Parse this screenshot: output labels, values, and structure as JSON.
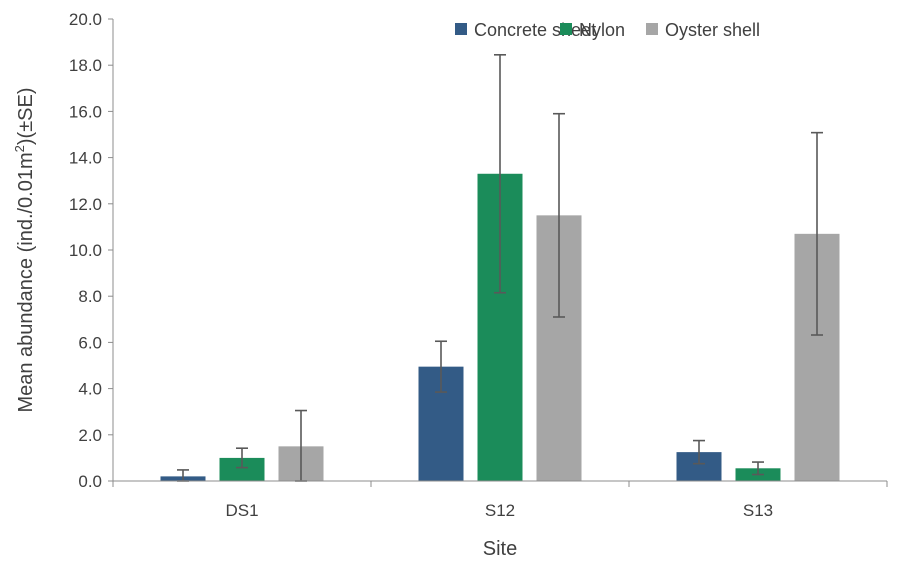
{
  "chart_data": {
    "type": "bar",
    "xlabel": "Site",
    "ylabel_main": "Mean abundance (ind./0.01m",
    "ylabel_sup": "2",
    "ylabel_tail": ")(±SE)",
    "categories": [
      "DS1",
      "S12",
      "S13"
    ],
    "ylim": [
      0,
      20
    ],
    "yticks": [
      "0.0",
      "2.0",
      "4.0",
      "6.0",
      "8.0",
      "10.0",
      "12.0",
      "14.0",
      "16.0",
      "18.0",
      "20.0"
    ],
    "legend_position": "top-right",
    "grid": false,
    "series": [
      {
        "name": "Concrete sheet",
        "color": "#335b86",
        "values": [
          0.2,
          4.95,
          1.25
        ],
        "errors": [
          0.28,
          1.1,
          0.5
        ]
      },
      {
        "name": "Nylon",
        "color": "#1b8c5a",
        "values": [
          1.0,
          13.3,
          0.55
        ],
        "errors": [
          0.42,
          5.15,
          0.27
        ]
      },
      {
        "name": "Oyster shell",
        "color": "#a6a6a6",
        "values": [
          1.5,
          11.5,
          10.7
        ],
        "errors": [
          1.55,
          4.4,
          4.38
        ]
      }
    ]
  }
}
